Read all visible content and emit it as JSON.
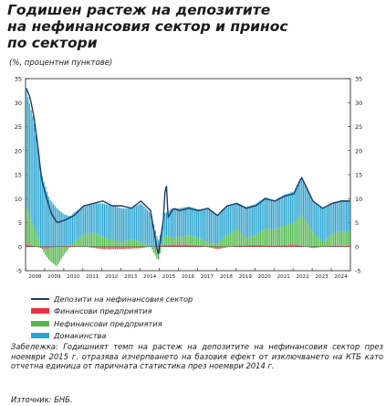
{
  "title_lines": [
    "Годишен растеж на депозитите",
    "на нефинансовия сектор и принос",
    "по сектори"
  ],
  "unit_label": "(%, процентни пунктове)",
  "legend": [
    {
      "label": "Депозити на нефинансовия сектор",
      "kind": "line",
      "color": "#1f3a66"
    },
    {
      "label": "Финансови предприятия",
      "kind": "bar",
      "color": "#e8303f"
    },
    {
      "label": "Нефинансови предприятия",
      "kind": "bar",
      "color": "#4fb84a"
    },
    {
      "label": "Домакинства",
      "kind": "bar",
      "color": "#2aa3cf"
    }
  ],
  "note": "Забележка: Годишният темп на растеж на депозитите на нефинансовия сектор през ноември 2015 г. отразява изчерпването на базовия ефект от изключването на КТБ като отчетна единица от паричната статистика през ноември 2014 г.",
  "source": "Източник: БНБ.",
  "chart_data": {
    "type": "bar",
    "x": [
      "2008",
      "2009",
      "2010",
      "2011",
      "2012",
      "2013",
      "2014",
      "2015",
      "2016",
      "2017",
      "2018",
      "2019",
      "2020",
      "2021",
      "2022",
      "2023",
      "2024"
    ],
    "ylim": [
      -5,
      35
    ],
    "yticks": [
      -5,
      0,
      5,
      10,
      15,
      20,
      25,
      30,
      35
    ],
    "stacked": true,
    "grid": false,
    "series": [
      {
        "name": "Депозити на нефинансовия сектор",
        "kind": "line",
        "color": "#1f3a66",
        "anchors": [
          [
            2008.0,
            33.0
          ],
          [
            2008.2,
            31.0
          ],
          [
            2008.4,
            27.0
          ],
          [
            2008.6,
            21.0
          ],
          [
            2008.8,
            14.0
          ],
          [
            2009.0,
            11.0
          ],
          [
            2009.3,
            7.0
          ],
          [
            2009.6,
            5.0
          ],
          [
            2010.0,
            5.5
          ],
          [
            2010.5,
            6.5
          ],
          [
            2011.0,
            8.5
          ],
          [
            2011.5,
            9.0
          ],
          [
            2012.0,
            9.5
          ],
          [
            2012.5,
            8.5
          ],
          [
            2013.0,
            8.5
          ],
          [
            2013.5,
            8.0
          ],
          [
            2014.0,
            9.5
          ],
          [
            2014.5,
            7.5
          ],
          [
            2014.9,
            -2.0
          ],
          [
            2015.2,
            6.5
          ],
          [
            2015.3,
            16.0
          ],
          [
            2015.4,
            6.0
          ],
          [
            2015.7,
            8.0
          ],
          [
            2016.0,
            7.5
          ],
          [
            2016.5,
            8.0
          ],
          [
            2017.0,
            7.5
          ],
          [
            2017.5,
            8.0
          ],
          [
            2018.0,
            6.5
          ],
          [
            2018.5,
            8.5
          ],
          [
            2019.0,
            9.0
          ],
          [
            2019.5,
            8.0
          ],
          [
            2020.0,
            8.5
          ],
          [
            2020.5,
            10.0
          ],
          [
            2021.0,
            9.5
          ],
          [
            2021.5,
            10.5
          ],
          [
            2022.0,
            11.0
          ],
          [
            2022.4,
            14.5
          ],
          [
            2022.7,
            12.0
          ],
          [
            2023.0,
            9.5
          ],
          [
            2023.5,
            8.0
          ],
          [
            2024.0,
            9.0
          ],
          [
            2024.5,
            9.5
          ]
        ]
      },
      {
        "name": "Финансови предприятия",
        "kind": "bar",
        "color": "#e8303f",
        "anchors": [
          [
            2008.0,
            0.5
          ],
          [
            2008.5,
            0.0
          ],
          [
            2009.0,
            -0.5
          ],
          [
            2010.0,
            0.2
          ],
          [
            2011.0,
            0.0
          ],
          [
            2012.0,
            -0.5
          ],
          [
            2013.0,
            -0.5
          ],
          [
            2014.0,
            -0.3
          ],
          [
            2015.0,
            0.3
          ],
          [
            2016.0,
            0.5
          ],
          [
            2017.0,
            0.3
          ],
          [
            2018.0,
            -0.5
          ],
          [
            2019.0,
            0.2
          ],
          [
            2020.0,
            0.4
          ],
          [
            2021.0,
            0.2
          ],
          [
            2022.0,
            0.5
          ],
          [
            2023.0,
            -0.3
          ],
          [
            2024.0,
            0.2
          ],
          [
            2024.5,
            0.2
          ]
        ]
      },
      {
        "name": "Нефинансови предприятия",
        "kind": "bar",
        "color": "#4fb84a",
        "anchors": [
          [
            2008.0,
            8.0
          ],
          [
            2008.4,
            4.0
          ],
          [
            2008.8,
            0.0
          ],
          [
            2009.2,
            -2.5
          ],
          [
            2009.6,
            -4.0
          ],
          [
            2010.0,
            -1.5
          ],
          [
            2010.5,
            1.0
          ],
          [
            2011.0,
            2.5
          ],
          [
            2011.5,
            3.0
          ],
          [
            2012.0,
            2.0
          ],
          [
            2012.5,
            1.5
          ],
          [
            2013.0,
            1.0
          ],
          [
            2013.5,
            1.5
          ],
          [
            2014.0,
            1.0
          ],
          [
            2014.5,
            0.0
          ],
          [
            2014.9,
            -3.0
          ],
          [
            2015.2,
            2.0
          ],
          [
            2015.6,
            1.5
          ],
          [
            2016.0,
            1.5
          ],
          [
            2016.5,
            2.0
          ],
          [
            2017.0,
            1.5
          ],
          [
            2017.5,
            1.0
          ],
          [
            2018.0,
            0.5
          ],
          [
            2018.5,
            2.5
          ],
          [
            2019.0,
            3.5
          ],
          [
            2019.5,
            1.5
          ],
          [
            2020.0,
            2.0
          ],
          [
            2020.5,
            3.5
          ],
          [
            2021.0,
            3.5
          ],
          [
            2021.5,
            4.0
          ],
          [
            2022.0,
            4.5
          ],
          [
            2022.4,
            6.5
          ],
          [
            2022.7,
            5.0
          ],
          [
            2023.0,
            3.0
          ],
          [
            2023.5,
            1.0
          ],
          [
            2024.0,
            2.5
          ],
          [
            2024.5,
            3.0
          ]
        ]
      },
      {
        "name": "Домакинства",
        "kind": "bar",
        "color": "#2aa3cf",
        "anchors": [
          [
            2008.0,
            24.0
          ],
          [
            2008.4,
            22.0
          ],
          [
            2008.8,
            15.0
          ],
          [
            2009.2,
            10.0
          ],
          [
            2009.6,
            8.0
          ],
          [
            2010.0,
            6.5
          ],
          [
            2010.5,
            6.0
          ],
          [
            2011.0,
            6.0
          ],
          [
            2011.5,
            6.0
          ],
          [
            2012.0,
            7.0
          ],
          [
            2012.5,
            7.0
          ],
          [
            2013.0,
            7.0
          ],
          [
            2013.5,
            6.5
          ],
          [
            2014.0,
            8.0
          ],
          [
            2014.5,
            7.0
          ],
          [
            2014.9,
            1.0
          ],
          [
            2015.2,
            4.5
          ],
          [
            2015.6,
            6.0
          ],
          [
            2016.0,
            6.0
          ],
          [
            2016.5,
            6.0
          ],
          [
            2017.0,
            6.0
          ],
          [
            2017.5,
            7.0
          ],
          [
            2018.0,
            6.0
          ],
          [
            2018.5,
            6.0
          ],
          [
            2019.0,
            5.5
          ],
          [
            2019.5,
            6.5
          ],
          [
            2020.0,
            6.5
          ],
          [
            2020.5,
            6.5
          ],
          [
            2021.0,
            6.0
          ],
          [
            2021.5,
            6.5
          ],
          [
            2022.0,
            6.5
          ],
          [
            2022.4,
            8.0
          ],
          [
            2022.7,
            7.0
          ],
          [
            2023.0,
            6.5
          ],
          [
            2023.5,
            7.0
          ],
          [
            2024.0,
            6.5
          ],
          [
            2024.5,
            6.5
          ]
        ]
      }
    ]
  }
}
